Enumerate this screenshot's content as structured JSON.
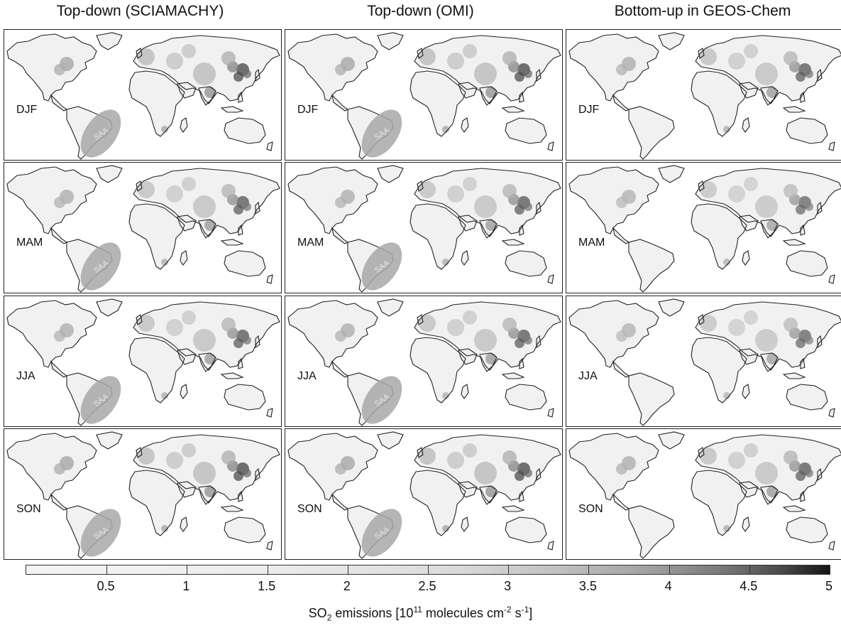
{
  "columns": [
    {
      "title": "Top-down (SCIAMACHY)",
      "show_saa": true,
      "shade": "#c9c9c9"
    },
    {
      "title": "Top-down (OMI)",
      "show_saa": true,
      "shade": "#c3c3c3"
    },
    {
      "title": "Bottom-up in GEOS-Chem",
      "show_saa": false,
      "shade": "#bdbdbd"
    }
  ],
  "seasons": [
    "DJF",
    "MAM",
    "JJA",
    "SON"
  ],
  "saa_label": "SAA",
  "colorbar": {
    "ticks": [
      "0.5",
      "1",
      "1.5",
      "2",
      "2.5",
      "3",
      "3.5",
      "4",
      "4.5",
      "5"
    ],
    "label_main": "SO",
    "label_sub": "2",
    "label_mid": " emissions [10",
    "label_sup1": "11",
    "label_units": " molecules cm",
    "label_sup2": "-2",
    "label_s": " s",
    "label_sup3": "-1",
    "label_end": "]",
    "range": [
      0,
      5
    ]
  }
}
